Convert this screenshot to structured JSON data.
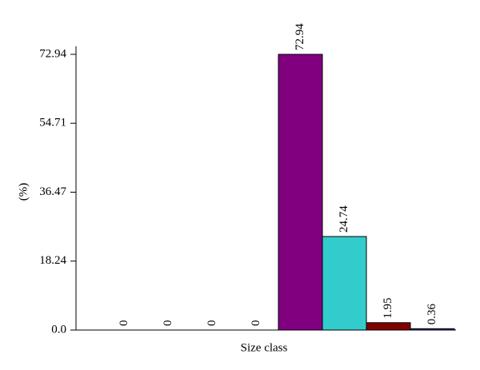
{
  "chart_data": {
    "type": "bar",
    "x_label": "Size class",
    "y_label": "(%)",
    "categories": [
      null,
      null,
      null,
      null,
      null,
      null,
      null,
      null
    ],
    "values": [
      0,
      0,
      0,
      0,
      72.94,
      24.74,
      1.95,
      0.36
    ],
    "colors": [
      null,
      null,
      null,
      null,
      "#800080",
      "#33cccc",
      "#800000",
      "#333399"
    ],
    "ylim": [
      0,
      72.94
    ],
    "yticks": [
      {
        "value": 0,
        "label": "0.0"
      },
      18.24,
      36.47,
      54.71,
      72.94
    ]
  }
}
